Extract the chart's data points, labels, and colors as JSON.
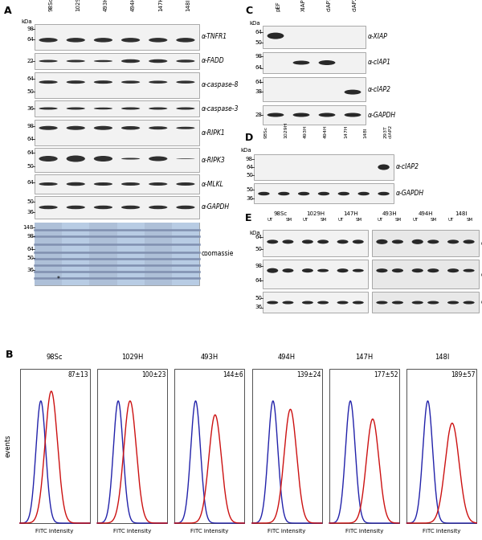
{
  "panel_A_cols": [
    "98Sc",
    "1029H",
    "493H",
    "494H",
    "147H",
    "148I"
  ],
  "panel_B_samples": [
    "98Sc",
    "1029H",
    "493H",
    "494H",
    "147H",
    "148I"
  ],
  "panel_B_values": [
    "87±13",
    "100±23",
    "144±6",
    "139±24",
    "177±52",
    "189±57"
  ],
  "panel_C_cols": [
    "pEF",
    "XIAP",
    "cIAP1",
    "cIAP2"
  ],
  "panel_D_cols": [
    "98Sc",
    "1029H",
    "493H",
    "494H",
    "147H",
    "148I",
    "293T\ncIAP2"
  ],
  "panel_E_g1": [
    "98Sc",
    "1029H",
    "147H"
  ],
  "panel_E_g2": [
    "493H",
    "494H",
    "148I"
  ],
  "blue_color": "#2222aa",
  "red_color": "#cc1111",
  "blot_bg_light": "#efefef",
  "blot_bg_gray": "#c8c8c8",
  "coom_color": "#b8cce4",
  "band_dark": "#282828",
  "band_mid": "#686868"
}
